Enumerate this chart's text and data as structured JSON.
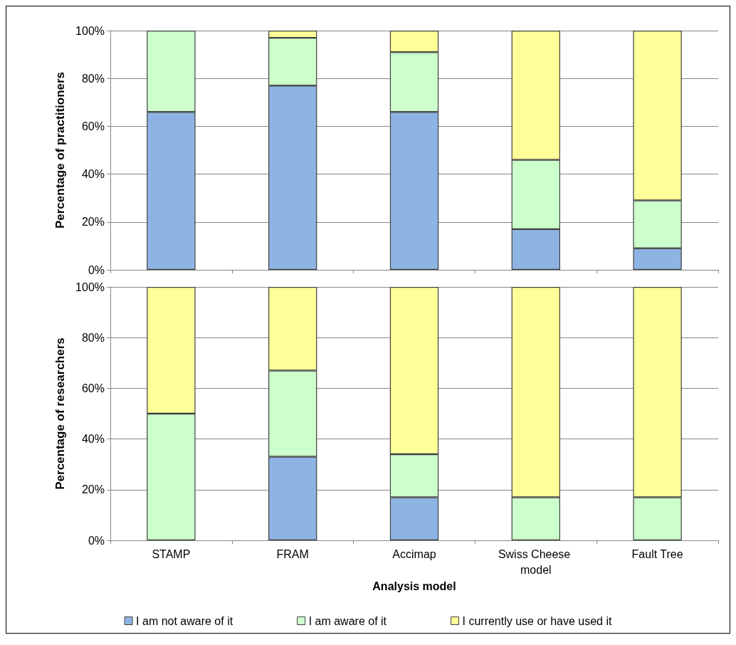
{
  "chart_data": [
    {
      "type": "bar",
      "stacked": true,
      "ylabel": "Percentage of practitioners",
      "categories": [
        "STAMP",
        "FRAM",
        "Accimap",
        "Swiss Cheese model",
        "Fault Tree"
      ],
      "ylim": [
        0,
        100
      ],
      "yticks": [
        {
          "value": 0,
          "label": "0%"
        },
        {
          "value": 20,
          "label": "20%"
        },
        {
          "value": 40,
          "label": "40%"
        },
        {
          "value": 60,
          "label": "60%"
        },
        {
          "value": 80,
          "label": "80%"
        },
        {
          "value": 100,
          "label": "100%"
        }
      ],
      "grid": "y",
      "tick_labels": "y",
      "series": [
        {
          "color": "#8eb4e3",
          "values": [
            66,
            77,
            66,
            17,
            9
          ]
        },
        {
          "color": "#ccffcc",
          "values": [
            34,
            20,
            25,
            29,
            20
          ]
        },
        {
          "color": "#ffff99",
          "values": [
            0,
            3,
            9,
            54,
            71
          ]
        }
      ]
    },
    {
      "type": "bar",
      "stacked": true,
      "ylabel": "Percentage of researchers",
      "xlabel": "Analysis model",
      "categories": [
        "STAMP",
        "FRAM",
        "Accimap",
        "Swiss Cheese model",
        "Fault Tree"
      ],
      "ylim": [
        0,
        100
      ],
      "yticks": [
        {
          "value": 0,
          "label": "0%"
        },
        {
          "value": 20,
          "label": "20%"
        },
        {
          "value": 40,
          "label": "40%"
        },
        {
          "value": 60,
          "label": "60%"
        },
        {
          "value": 80,
          "label": "80%"
        },
        {
          "value": 100,
          "label": "100%"
        }
      ],
      "grid": "y",
      "legend": "bottom",
      "series": [
        {
          "name": "I am not aware of it",
          "color": "#8eb4e3",
          "values": [
            0,
            33,
            17,
            0,
            0
          ]
        },
        {
          "name": "I am aware of it",
          "color": "#ccffcc",
          "values": [
            50,
            34,
            17,
            17,
            17
          ]
        },
        {
          "name": "I currently use or have used it",
          "color": "#ffff99",
          "values": [
            50,
            33,
            66,
            83,
            83
          ]
        }
      ]
    }
  ]
}
